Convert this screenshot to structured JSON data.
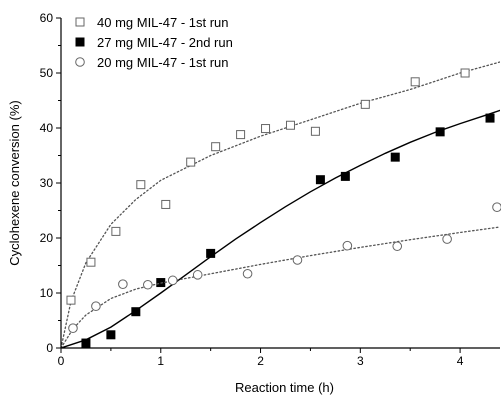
{
  "chart_data": {
    "type": "scatter",
    "xlabel": "Reaction time (h)",
    "ylabel": "Cyclohexene conversion (%)",
    "xlim": [
      0,
      4.4
    ],
    "ylim": [
      0,
      60
    ],
    "x_ticks": [
      "0",
      "1",
      "2",
      "3",
      "4"
    ],
    "y_ticks": [
      "0",
      "10",
      "20",
      "30",
      "40",
      "50",
      "60"
    ],
    "grid": false,
    "legend_position": "top-left",
    "series": [
      {
        "name": "40 mg MIL-47 - 1st run",
        "marker": "open-square",
        "fit": "dotted",
        "x": [
          0.1,
          0.3,
          0.55,
          0.8,
          1.05,
          1.3,
          1.55,
          1.8,
          2.05,
          2.3,
          2.55,
          3.05,
          3.55,
          4.05
        ],
        "y": [
          8.7,
          15.6,
          21.2,
          29.7,
          26.1,
          33.8,
          36.6,
          38.8,
          39.9,
          40.5,
          39.4,
          44.3,
          48.4,
          50.0
        ],
        "fit_curve": {
          "x": [
            0,
            0.1,
            0.25,
            0.5,
            0.75,
            1.0,
            1.5,
            2.0,
            2.5,
            3.0,
            3.5,
            4.0,
            4.4
          ],
          "y": [
            0,
            8.5,
            15.5,
            22.5,
            27.0,
            30.5,
            35.0,
            38.5,
            41.5,
            44.5,
            47.0,
            50.0,
            52.0
          ]
        }
      },
      {
        "name": "27 mg MIL-47 - 2nd run",
        "marker": "filled-square",
        "fit": "solid",
        "x": [
          0.25,
          0.5,
          0.75,
          1.0,
          1.5,
          2.6,
          2.85,
          3.35,
          3.8,
          4.3
        ],
        "y": [
          0.9,
          2.4,
          6.6,
          11.9,
          17.2,
          30.6,
          31.2,
          34.7,
          39.3,
          41.8
        ],
        "fit_curve": {
          "x": [
            0,
            0.25,
            0.5,
            0.75,
            1.0,
            1.25,
            1.5,
            1.75,
            2.0,
            2.25,
            2.5,
            2.75,
            3.0,
            3.25,
            3.5,
            3.75,
            4.0,
            4.25,
            4.4
          ],
          "y": [
            0,
            1.5,
            3.8,
            6.8,
            10.0,
            13.3,
            16.6,
            19.8,
            22.8,
            25.7,
            28.4,
            30.9,
            33.2,
            35.4,
            37.4,
            39.2,
            40.8,
            42.3,
            43.2
          ]
        }
      },
      {
        "name": "20 mg MIL-47 - 1st run",
        "marker": "open-circle",
        "fit": "dotted",
        "x": [
          0.12,
          0.35,
          0.62,
          0.87,
          1.12,
          1.37,
          1.87,
          2.37,
          2.87,
          3.37,
          3.87,
          4.37
        ],
        "y": [
          3.6,
          7.6,
          11.6,
          11.5,
          12.3,
          13.3,
          13.5,
          16.0,
          18.6,
          18.5,
          19.8,
          25.6
        ],
        "fit_curve": {
          "x": [
            0,
            0.12,
            0.25,
            0.5,
            0.75,
            1.0,
            1.5,
            2.0,
            2.5,
            3.0,
            3.5,
            4.0,
            4.4
          ],
          "y": [
            0,
            3.5,
            6.0,
            9.0,
            10.7,
            11.8,
            13.5,
            15.2,
            16.8,
            18.3,
            19.7,
            21.0,
            22.0
          ]
        }
      }
    ]
  }
}
